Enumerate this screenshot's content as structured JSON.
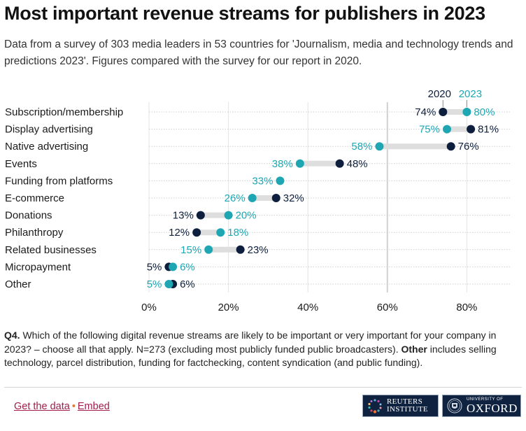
{
  "title": "Most important revenue streams for publishers in 2023",
  "subtitle": "Data from a survey of 303 media leaders in 53 countries for 'Journalism, media and technology trends and predictions 2023'. Figures compared with the survey for our report in 2020.",
  "colors": {
    "y2020": "#0d1f3c",
    "y2023": "#1ea7b3",
    "connector": "#dedede",
    "grid": "#e3e3e3"
  },
  "chart_data": {
    "type": "dot-plot",
    "title": "Most important revenue streams for publishers in 2023",
    "xlabel": "",
    "ylabel": "",
    "xlim": [
      0,
      91
    ],
    "x_ticks": [
      0,
      20,
      40,
      60,
      80
    ],
    "x_tick_labels": [
      "0%",
      "20%",
      "40%",
      "60%",
      "80%"
    ],
    "highlight_gridline": 60,
    "legend": {
      "placement": "top-right",
      "entries": [
        "2020",
        "2023"
      ]
    },
    "categories": [
      "Subscription/membership",
      "Display advertising",
      "Native advertising",
      "Events",
      "Funding from platforms",
      "E-commerce",
      "Donations",
      "Philanthropy",
      "Related businesses",
      "Micropayment",
      "Other"
    ],
    "series": [
      {
        "name": "2020",
        "values": [
          74,
          81,
          76,
          48,
          null,
          32,
          13,
          12,
          23,
          5,
          6
        ]
      },
      {
        "name": "2023",
        "values": [
          80,
          75,
          58,
          38,
          33,
          26,
          20,
          18,
          15,
          6,
          5
        ]
      }
    ]
  },
  "note": {
    "q_label": "Q4.",
    "q_text": " Which of the following digital revenue streams are likely to be important or very important for your company in 2023? – choose all that apply. N=273 (excluding most publicly funded public broadcasters). ",
    "other_label": "Other",
    "other_text": " includes selling technology, parcel distribution, funding for factchecking, content syndication (and public funding)."
  },
  "footer": {
    "get_data": "Get the data",
    "separator": "•",
    "embed": "Embed",
    "logo_reuters_line1": "REUTERS",
    "logo_reuters_line2": "INSTITUTE",
    "logo_oxford_small": "UNIVERSITY OF",
    "logo_oxford_big": "OXFORD"
  }
}
